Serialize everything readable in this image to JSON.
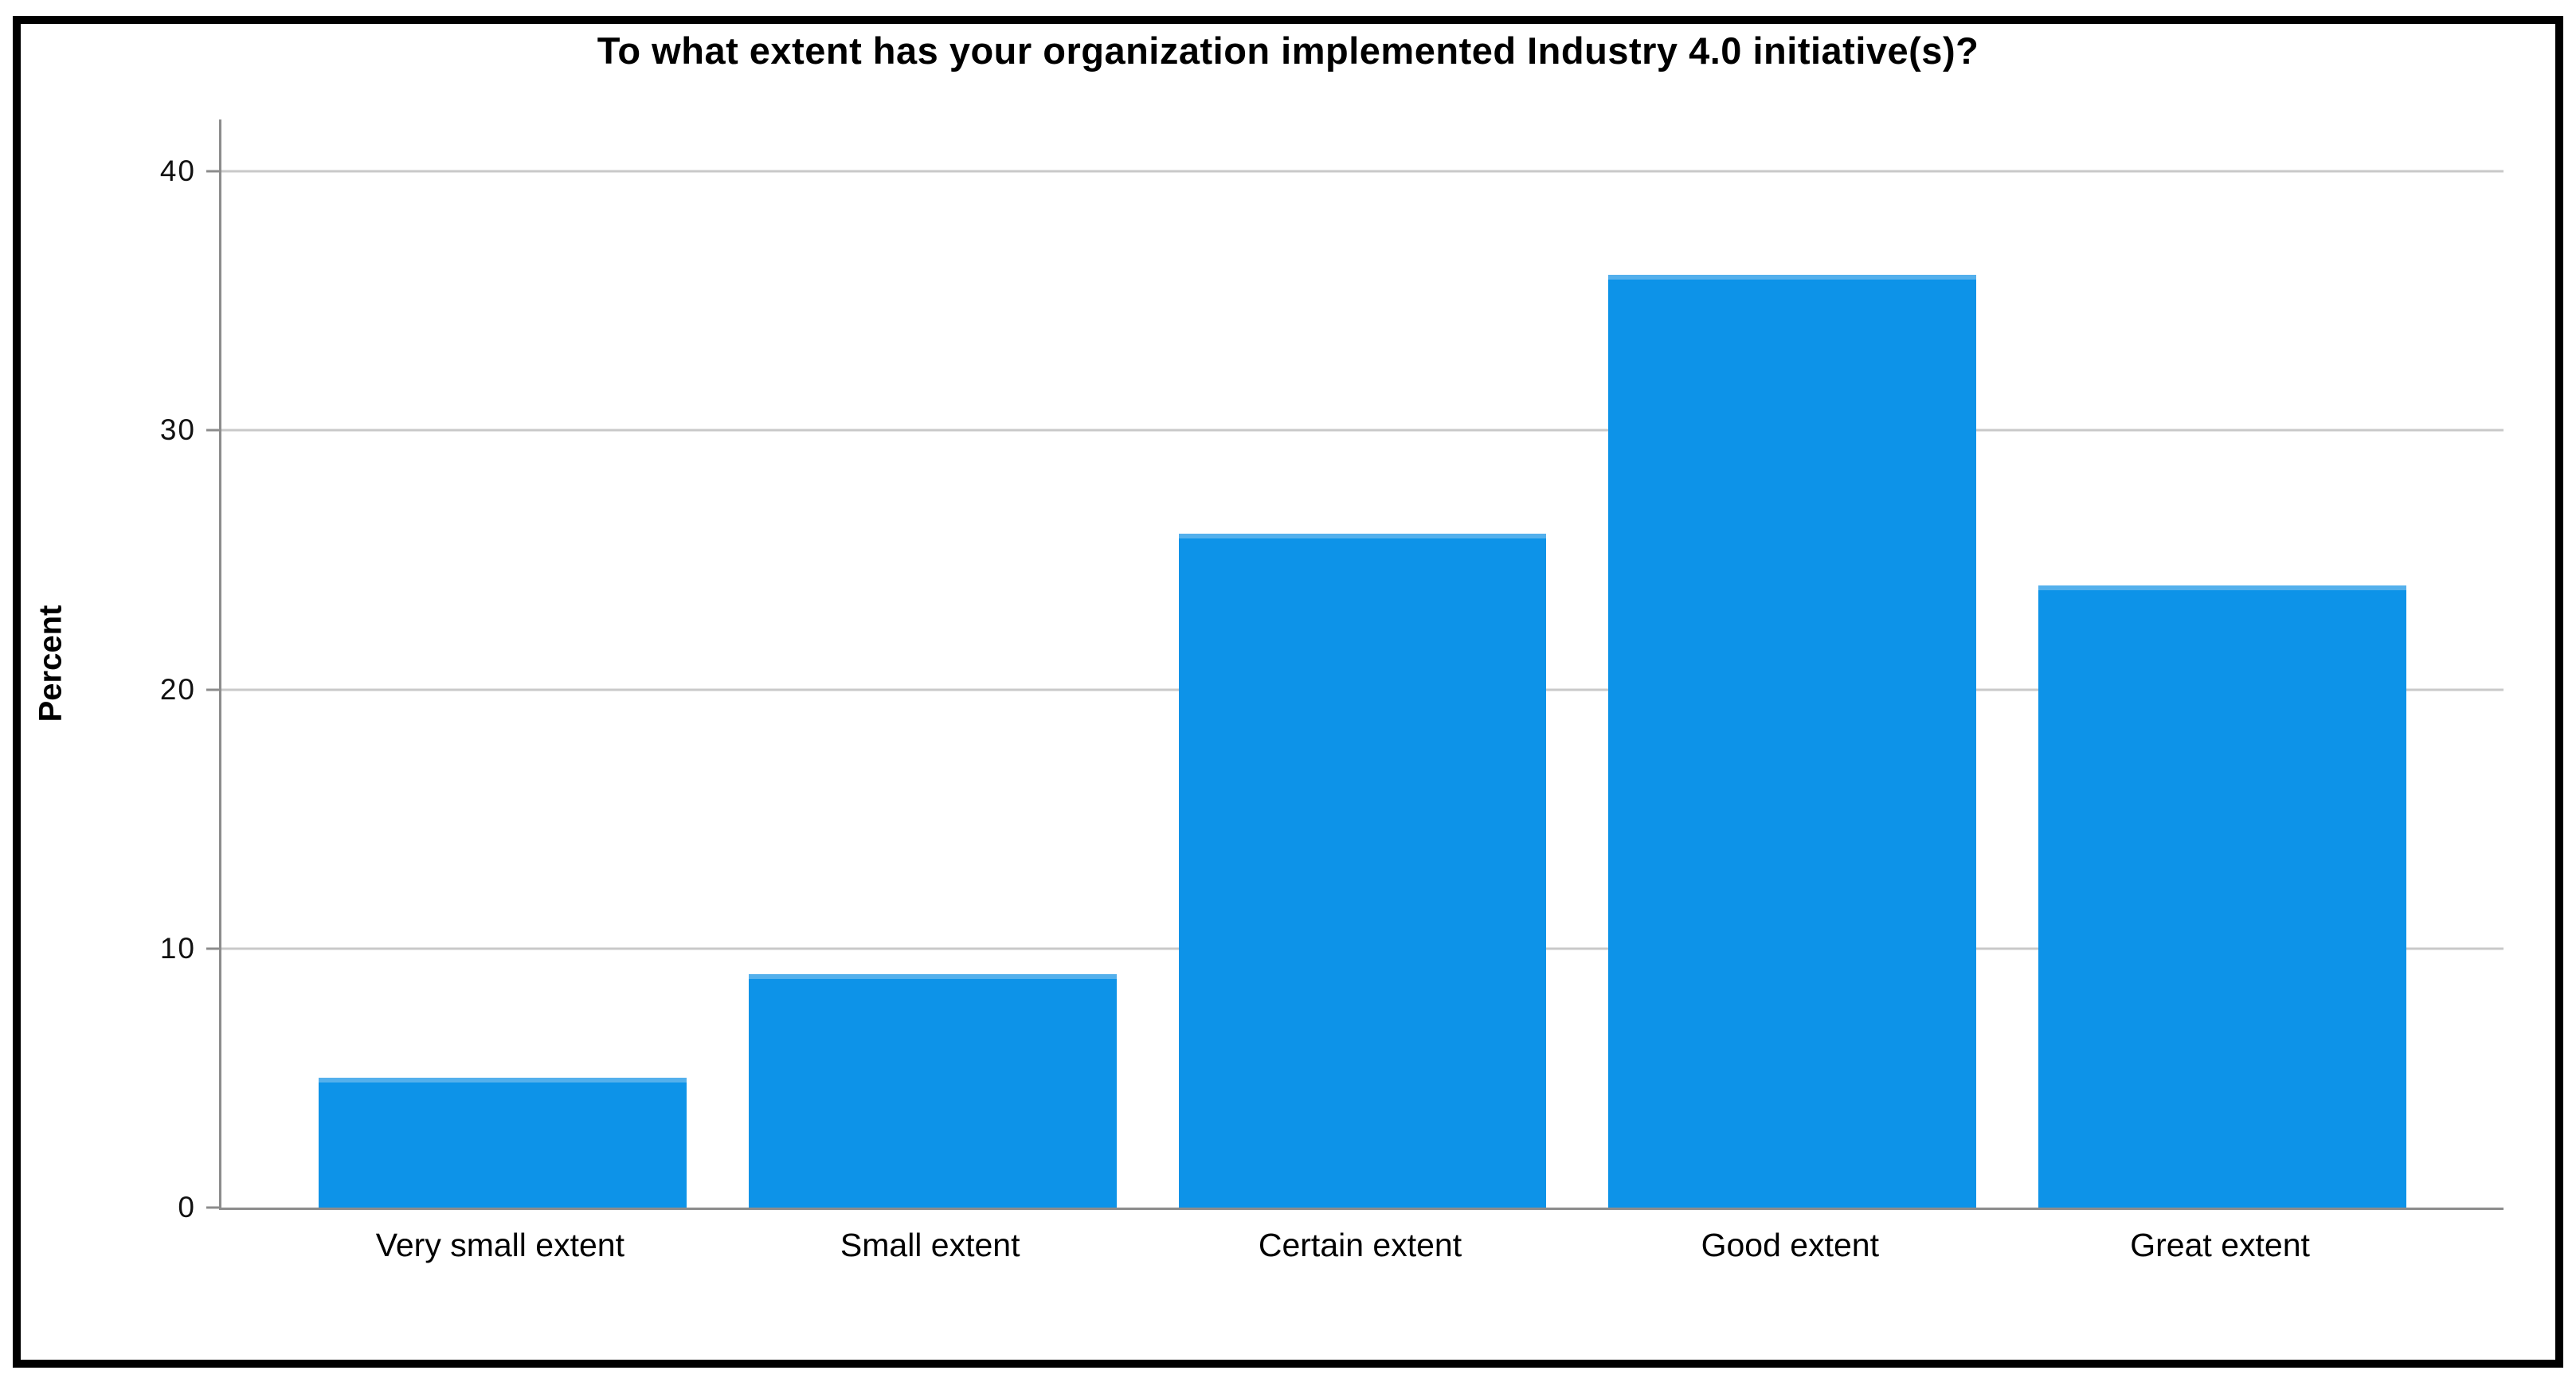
{
  "chart_data": {
    "type": "bar",
    "title": "To what extent has your organization implemented Industry 4.0 initiative(s)?",
    "xlabel": "",
    "ylabel": "Percent",
    "categories": [
      "Very small extent",
      "Small extent",
      "Certain extent",
      "Good extent",
      "Great extent"
    ],
    "values": [
      5,
      9,
      26,
      36,
      24
    ],
    "yticks": [
      0,
      10,
      20,
      30,
      40
    ],
    "ylim": [
      0,
      42
    ],
    "grid": true,
    "legend_position": "none",
    "bar_color": "#0d93e8",
    "bar_cap_color": "#54b0ec",
    "gridline_color": "#c9c9c9",
    "axis_color": "#8c8c8c",
    "frame_color": "#000000",
    "background_color": "#ffffff"
  }
}
